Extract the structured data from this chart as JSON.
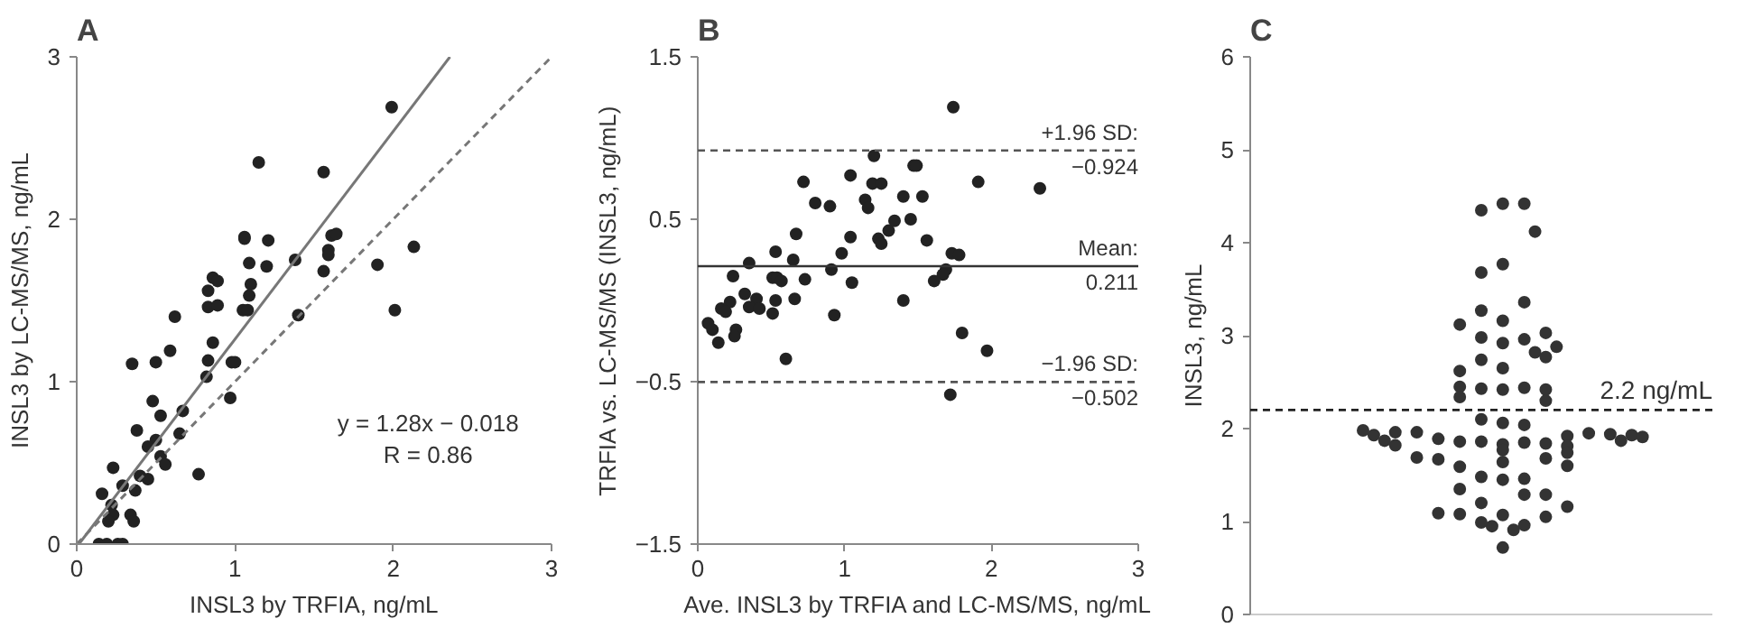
{
  "chart_data": [
    {
      "type": "scatter",
      "title": "A",
      "xlabel": "INSL3 by TRFIA, ng/mL",
      "ylabel": "INSL3 by LC-MS/MS, ng/mL",
      "xlim": [
        0,
        3
      ],
      "ylim": [
        0,
        3
      ],
      "xticks": [
        0,
        1,
        2,
        3
      ],
      "yticks": [
        0,
        1,
        2,
        3
      ],
      "grid": false,
      "annotations": [
        "y = 1.28x − 0.018",
        "R = 0.86"
      ],
      "series": [
        {
          "marker": "circle",
          "color": "#222222",
          "x": [
            1.99,
            1.15,
            1.56,
            1.06,
            1.06,
            1.21,
            1.61,
            1.64,
            1.59,
            1.59,
            2.13,
            1.38,
            1.09,
            1.2,
            1.9,
            1.56,
            0.86,
            0.89,
            0.83,
            1.1,
            1.09,
            0.83,
            0.89,
            1.05,
            1.08,
            1.4,
            2.01,
            0.62,
            0.86,
            0.59,
            0.35,
            0.5,
            0.83,
            0.98,
            1.0,
            0.82,
            0.97,
            0.48,
            0.53,
            0.67,
            0.38,
            0.65,
            0.5,
            0.45,
            0.53,
            0.56,
            0.23,
            0.77,
            0.4,
            0.45,
            0.29,
            0.37,
            0.16,
            0.22,
            0.34,
            0.23,
            0.2,
            0.36,
            0.14,
            0.19,
            0.26,
            0.29
          ],
          "values": [
            2.69,
            2.35,
            2.29,
            1.89,
            1.88,
            1.87,
            1.9,
            1.91,
            1.81,
            1.78,
            1.83,
            1.75,
            1.73,
            1.71,
            1.72,
            1.68,
            1.64,
            1.62,
            1.56,
            1.6,
            1.53,
            1.46,
            1.47,
            1.44,
            1.44,
            1.41,
            1.44,
            1.4,
            1.24,
            1.19,
            1.11,
            1.12,
            1.13,
            1.12,
            1.12,
            1.03,
            0.9,
            0.88,
            0.79,
            0.82,
            0.7,
            0.68,
            0.64,
            0.6,
            0.54,
            0.49,
            0.47,
            0.43,
            0.42,
            0.4,
            0.36,
            0.33,
            0.31,
            0.24,
            0.18,
            0.18,
            0.14,
            0.14,
            0,
            0,
            0,
            0
          ]
        },
        {
          "type": "line",
          "line_style": "solid",
          "color": "#777777",
          "x": [
            0.014,
            2.358
          ],
          "values": [
            0,
            3
          ]
        },
        {
          "type": "line",
          "line_style": "dashed",
          "color": "#777777",
          "x": [
            0,
            3
          ],
          "values": [
            0,
            3
          ]
        }
      ]
    },
    {
      "type": "scatter",
      "title": "B",
      "xlabel": "Ave. INSL3 by TRFIA and LC-MS/MS, ng/mL",
      "ylabel": "TRFIA vs. LC-MS/MS (INSL3, ng/mL)",
      "xlim": [
        0,
        3
      ],
      "ylim": [
        -1.5,
        1.5
      ],
      "xticks": [
        0,
        1,
        2,
        3
      ],
      "yticks": [
        {
          "value": -1.5,
          "label": "−1.5"
        },
        {
          "value": -0.5,
          "label": "−0.5"
        },
        0.5,
        1.5
      ],
      "grid": false,
      "ref_lines": [
        {
          "axis": "y",
          "value": 0.924,
          "label": "+1.96 SD:",
          "line_style": "dashed",
          "color": "#555555"
        },
        {
          "axis": "y",
          "value": 0.211,
          "label": "Mean:",
          "line_style": "solid",
          "color": "#333333"
        },
        {
          "axis": "y",
          "value": -0.502,
          "label": "−1.96 SD:",
          "line_style": "dashed",
          "color": "#555555"
        }
      ],
      "annotations": [
        "−0.924",
        "0.211",
        "−0.502"
      ],
      "series": [
        {
          "marker": "circle",
          "color": "#222222",
          "x": [
            1.74,
            1.2,
            1.47,
            1.49,
            0.72,
            1.04,
            1.19,
            1.25,
            1.91,
            2.33,
            0.8,
            0.9,
            1.14,
            1.16,
            1.4,
            1.53,
            1.34,
            1.45,
            1.3,
            1.23,
            1.25,
            1.56,
            0.67,
            1.04,
            0.53,
            0.98,
            0.65,
            1.73,
            1.78,
            0.35,
            0.91,
            1.69,
            1.67,
            0.24,
            0.51,
            0.54,
            0.57,
            0.73,
            1.05,
            1.61,
            0.32,
            0.4,
            0.53,
            0.66,
            1.4,
            0.22,
            0.16,
            0.19,
            0.35,
            0.42,
            0.51,
            0.93,
            0.07,
            0.1,
            0.26,
            0.25,
            0.14,
            1.8,
            1.97,
            0.6,
            1.72
          ],
          "values": [
            1.19,
            0.89,
            0.83,
            0.83,
            0.73,
            0.77,
            0.72,
            0.72,
            0.73,
            0.69,
            0.6,
            0.58,
            0.62,
            0.57,
            0.64,
            0.64,
            0.49,
            0.5,
            0.43,
            0.38,
            0.35,
            0.37,
            0.41,
            0.39,
            0.3,
            0.29,
            0.25,
            0.29,
            0.28,
            0.23,
            0.19,
            0.19,
            0.16,
            0.15,
            0.14,
            0.14,
            0.12,
            0.13,
            0.11,
            0.12,
            0.04,
            0.01,
            0.0,
            0.01,
            0.0,
            -0.01,
            -0.05,
            -0.07,
            -0.04,
            -0.05,
            -0.08,
            -0.09,
            -0.14,
            -0.18,
            -0.18,
            -0.22,
            -0.26,
            -0.2,
            -0.31,
            -0.36,
            -0.58
          ]
        }
      ]
    },
    {
      "type": "scatter",
      "title": "C",
      "ylabel": "INSL3, ng/mL",
      "categories": [
        null,
        null,
        null,
        null,
        null,
        null,
        null,
        null,
        null,
        null,
        null,
        null,
        null,
        null,
        null,
        null,
        null,
        null,
        null,
        null,
        null,
        null,
        null,
        null,
        null,
        null,
        null,
        null,
        null,
        null,
        null,
        null,
        null,
        null,
        null,
        null,
        null,
        null,
        null,
        null,
        null,
        null,
        null
      ],
      "ylim": [
        0,
        6
      ],
      "yticks": [
        0,
        1,
        2,
        3,
        4,
        5,
        6
      ],
      "grid": false,
      "tick_labels": "y",
      "ref_lines": [
        {
          "axis": "y",
          "value": 2.2,
          "label": "2.2 ng/mL",
          "line_style": "dashed",
          "color": "#222222"
        }
      ],
      "series": [
        {
          "marker": "circle",
          "color": "#333333",
          "values": [
            null,
            null,
            null,
            null,
            null,
            null,
            null,
            null,
            null,
            null,
            1.98,
            1.93,
            1.87,
            1.96,
            null,
            1.96,
            null,
            1.89,
            null,
            3.12,
            null,
            4.35,
            0.95,
            4.42,
            0.91,
            4.42,
            4.12,
            3.03,
            2.88,
            1.92,
            null,
            1.95,
            null,
            1.94,
            1.87,
            1.93,
            1.91,
            null,
            null,
            null,
            null,
            null,
            null
          ]
        },
        {
          "marker": "circle",
          "color": "#333333",
          "values": [
            null,
            null,
            null,
            null,
            null,
            null,
            null,
            null,
            null,
            null,
            null,
            null,
            null,
            1.82,
            null,
            1.69,
            null,
            1.67,
            null,
            2.62,
            null,
            3.68,
            null,
            3.77,
            null,
            3.36,
            2.82,
            2.77,
            null,
            1.81,
            null,
            null,
            null,
            null,
            null,
            null,
            null,
            null,
            null,
            null,
            null,
            null,
            null
          ]
        },
        {
          "marker": "circle",
          "color": "#333333",
          "values": [
            null,
            null,
            null,
            null,
            null,
            null,
            null,
            null,
            null,
            null,
            null,
            null,
            null,
            null,
            null,
            null,
            null,
            1.09,
            null,
            2.45,
            null,
            3.27,
            null,
            3.16,
            null,
            2.96,
            null,
            2.42,
            null,
            1.74,
            null,
            null,
            null,
            null,
            null,
            null,
            null,
            null,
            null,
            null,
            null,
            null,
            null
          ]
        },
        {
          "marker": "circle",
          "color": "#333333",
          "values": [
            null,
            null,
            null,
            null,
            null,
            null,
            null,
            null,
            null,
            null,
            null,
            null,
            null,
            null,
            null,
            null,
            null,
            null,
            null,
            2.34,
            null,
            2.98,
            null,
            2.92,
            null,
            2.44,
            null,
            2.3,
            null,
            1.6,
            null,
            null,
            null,
            null,
            null,
            null,
            null,
            null,
            null,
            null,
            null,
            null,
            null
          ]
        },
        {
          "marker": "circle",
          "color": "#333333",
          "values": [
            null,
            null,
            null,
            null,
            null,
            null,
            null,
            null,
            null,
            null,
            null,
            null,
            null,
            null,
            null,
            null,
            null,
            null,
            null,
            1.86,
            null,
            2.74,
            null,
            2.65,
            null,
            2.04,
            null,
            1.84,
            null,
            1.16,
            null,
            null,
            null,
            null,
            null,
            null,
            null,
            null,
            null,
            null,
            null,
            null,
            null
          ]
        },
        {
          "marker": "circle",
          "color": "#333333",
          "values": [
            null,
            null,
            null,
            null,
            null,
            null,
            null,
            null,
            null,
            null,
            null,
            null,
            null,
            null,
            null,
            null,
            null,
            null,
            null,
            1.59,
            null,
            2.43,
            null,
            2.42,
            null,
            1.85,
            null,
            1.68,
            null,
            null,
            null,
            null,
            null,
            null,
            null,
            null,
            null,
            null,
            null,
            null,
            null,
            null,
            null
          ]
        },
        {
          "marker": "circle",
          "color": "#333333",
          "values": [
            null,
            null,
            null,
            null,
            null,
            null,
            null,
            null,
            null,
            null,
            null,
            null,
            null,
            null,
            null,
            null,
            null,
            null,
            null,
            1.35,
            null,
            2.1,
            null,
            2.06,
            null,
            1.46,
            null,
            1.29,
            null,
            null,
            null,
            null,
            null,
            null,
            null,
            null,
            null,
            null,
            null,
            null,
            null,
            null,
            null
          ]
        },
        {
          "marker": "circle",
          "color": "#333333",
          "values": [
            null,
            null,
            null,
            null,
            null,
            null,
            null,
            null,
            null,
            null,
            null,
            null,
            null,
            null,
            null,
            null,
            null,
            null,
            null,
            1.08,
            null,
            1.86,
            null,
            1.83,
            null,
            1.29,
            null,
            1.05,
            null,
            null,
            null,
            null,
            null,
            null,
            null,
            null,
            null,
            null,
            null,
            null,
            null,
            null,
            null
          ]
        },
        {
          "marker": "circle",
          "color": "#333333",
          "values": [
            null,
            null,
            null,
            null,
            null,
            null,
            null,
            null,
            null,
            null,
            null,
            null,
            null,
            null,
            null,
            null,
            null,
            null,
            null,
            null,
            null,
            1.48,
            null,
            1.77,
            null,
            0.96,
            null,
            null,
            null,
            null,
            null,
            null,
            null,
            null,
            null,
            null,
            null,
            null,
            null,
            null,
            null,
            null,
            null
          ]
        },
        {
          "marker": "circle",
          "color": "#333333",
          "values": [
            null,
            null,
            null,
            null,
            null,
            null,
            null,
            null,
            null,
            null,
            null,
            null,
            null,
            null,
            null,
            null,
            null,
            null,
            null,
            null,
            null,
            1.2,
            null,
            1.64,
            null,
            null,
            null,
            null,
            null,
            null,
            null,
            null,
            null,
            null,
            null,
            null,
            null,
            null,
            null,
            null,
            null,
            null,
            null
          ]
        },
        {
          "marker": "circle",
          "color": "#333333",
          "values": [
            null,
            null,
            null,
            null,
            null,
            null,
            null,
            null,
            null,
            null,
            null,
            null,
            null,
            null,
            null,
            null,
            null,
            null,
            null,
            null,
            null,
            0.99,
            null,
            1.45,
            null,
            null,
            null,
            null,
            null,
            null,
            null,
            null,
            null,
            null,
            null,
            null,
            null,
            null,
            null,
            null,
            null,
            null,
            null
          ]
        },
        {
          "marker": "circle",
          "color": "#333333",
          "values": [
            null,
            null,
            null,
            null,
            null,
            null,
            null,
            null,
            null,
            null,
            null,
            null,
            null,
            null,
            null,
            null,
            null,
            null,
            null,
            null,
            null,
            null,
            null,
            1.07,
            null,
            null,
            null,
            null,
            null,
            null,
            null,
            null,
            null,
            null,
            null,
            null,
            null,
            null,
            null,
            null,
            null,
            null,
            null
          ]
        },
        {
          "marker": "circle",
          "color": "#333333",
          "values": [
            null,
            null,
            null,
            null,
            null,
            null,
            null,
            null,
            null,
            null,
            null,
            null,
            null,
            null,
            null,
            null,
            null,
            null,
            null,
            null,
            null,
            null,
            null,
            0.72,
            null,
            null,
            null,
            null,
            null,
            null,
            null,
            null,
            null,
            null,
            null,
            null,
            null,
            null,
            null,
            null,
            null,
            null,
            null
          ]
        }
      ]
    }
  ]
}
